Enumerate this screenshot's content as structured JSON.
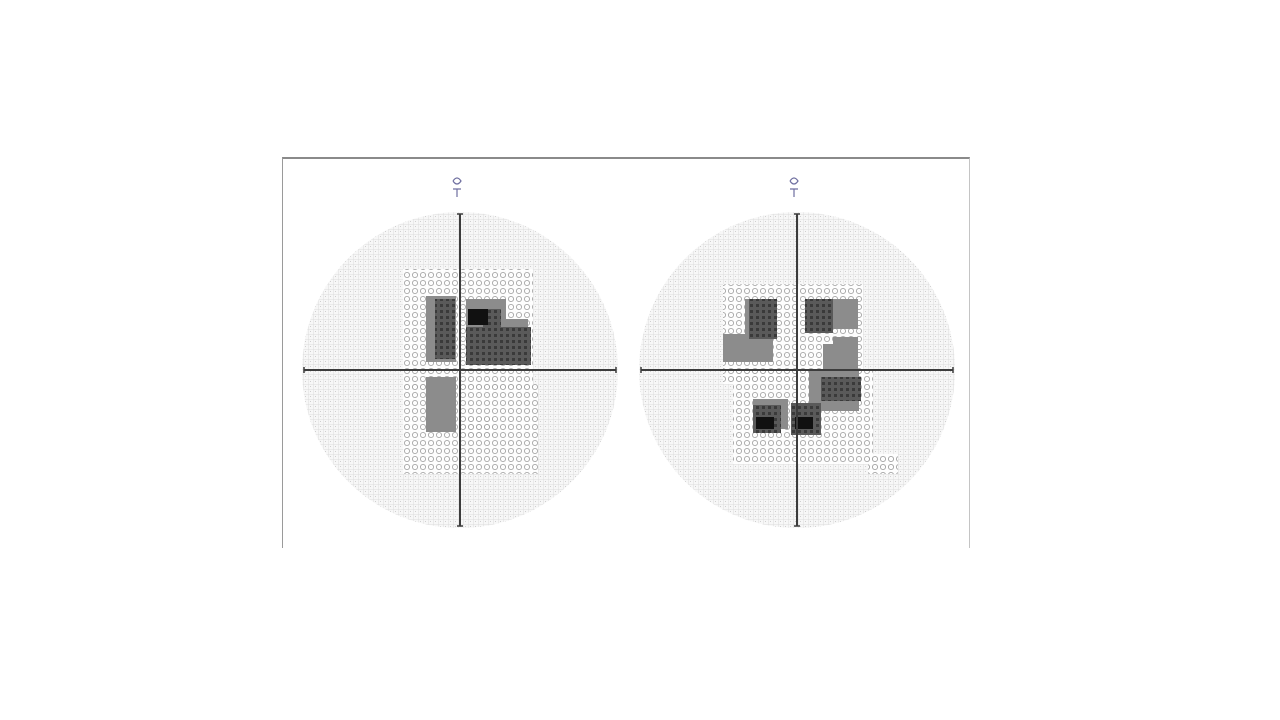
{
  "figure": {
    "fields": [
      {
        "id": "left"
      },
      {
        "id": "right"
      }
    ]
  },
  "colors": {
    "background": "#ffffff",
    "axis": "#3c3c3c",
    "grid_light": "#dcdcdc",
    "grid_dot": "#cfcfcf",
    "symbol_faint": "#9a9a9a",
    "defect_gray": "#8c8c8c",
    "defect_dark": "#3a3a3a",
    "defect_black": "#111111",
    "blind_spot_mark": "#6f6fa0"
  }
}
